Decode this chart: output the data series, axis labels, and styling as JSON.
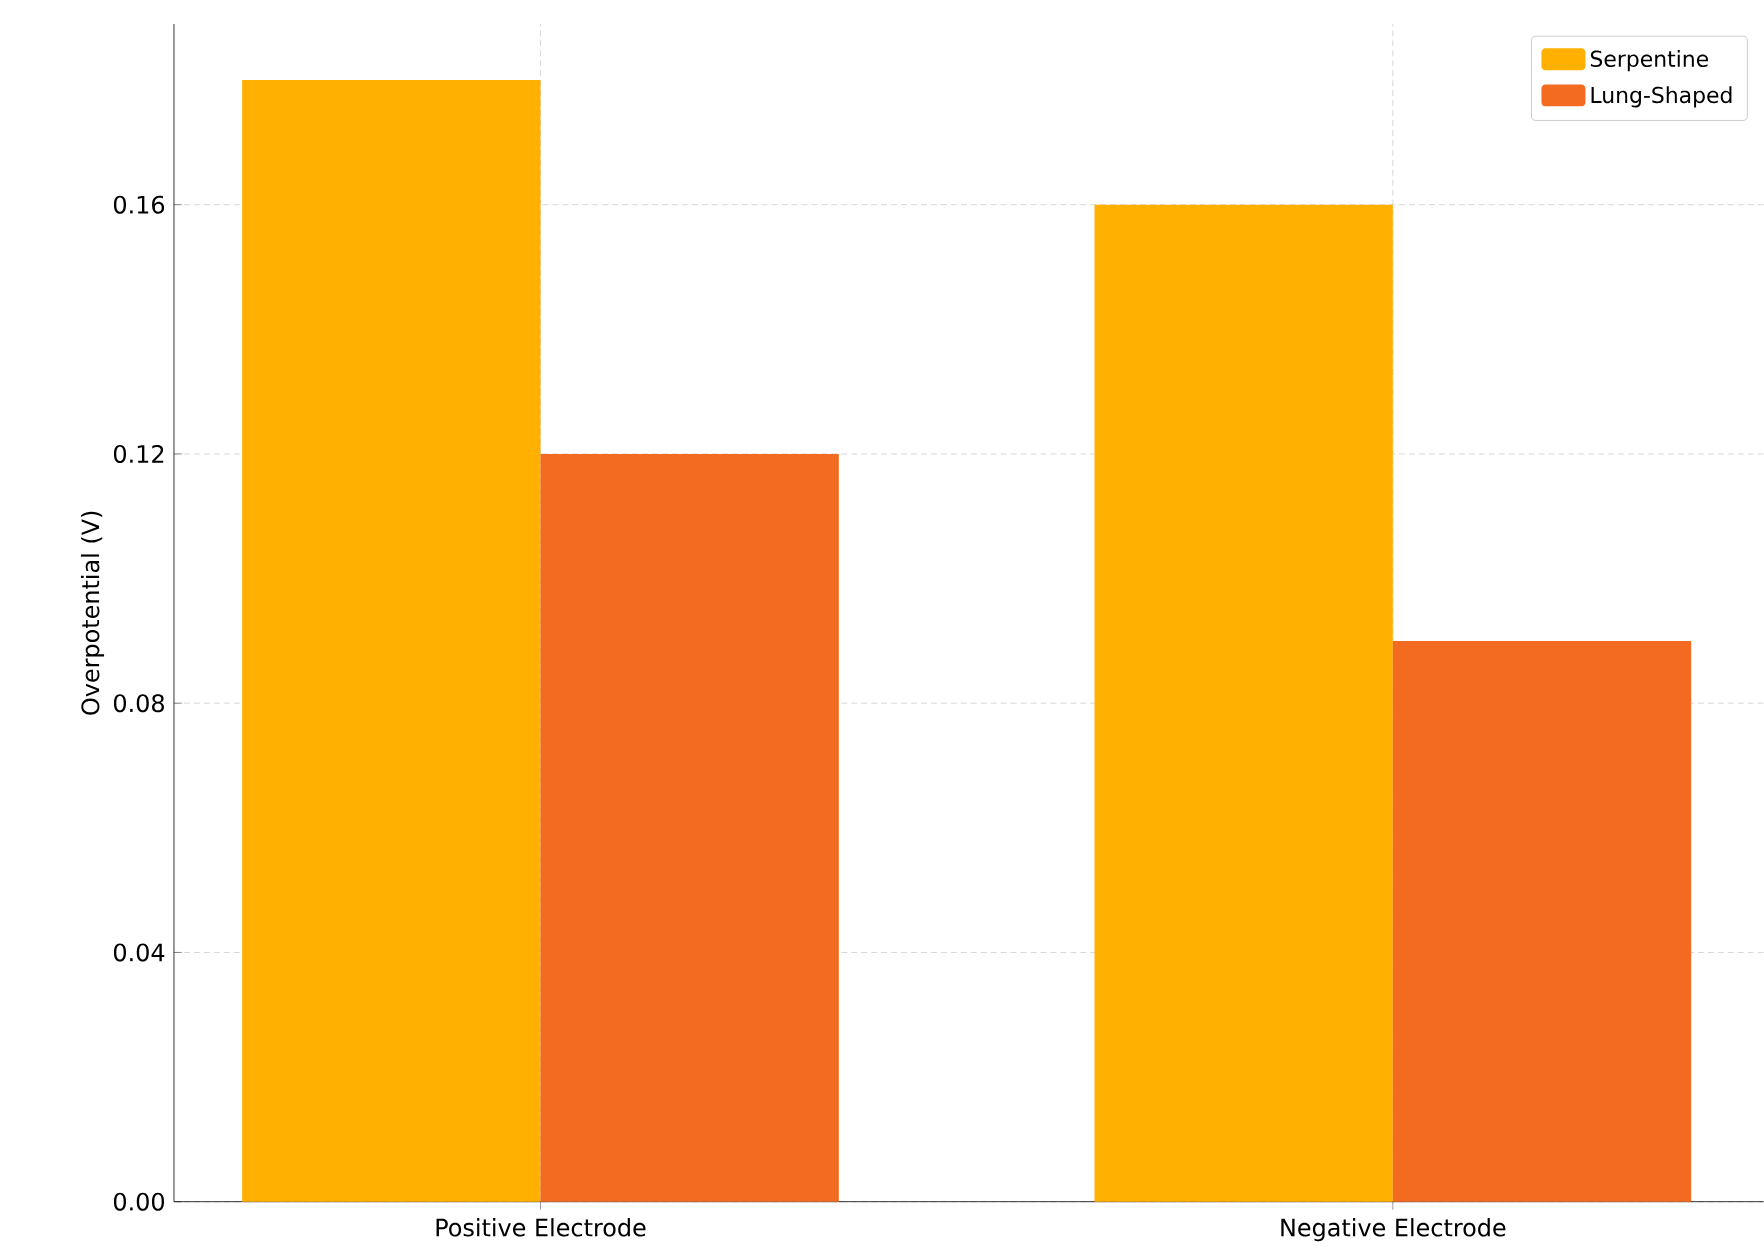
{
  "chart_data": {
    "type": "bar",
    "ylabel": "Overpotential (V)",
    "categories": [
      "Positive Electrode",
      "Negative Electrode"
    ],
    "series": [
      {
        "name": "Serpentine",
        "color": "#ffb000",
        "values": [
          0.18,
          0.16
        ]
      },
      {
        "name": "Lung-Shaped",
        "color": "#f26b21",
        "values": [
          0.12,
          0.09
        ]
      }
    ],
    "ylim": [
      0,
      0.189
    ],
    "yticks": [
      {
        "value": 0,
        "label": "0.00"
      },
      {
        "value": 0.04,
        "label": "0.04"
      },
      {
        "value": 0.08,
        "label": "0.08"
      },
      {
        "value": 0.12,
        "label": "0.12"
      },
      {
        "value": 0.16,
        "label": "0.16"
      }
    ],
    "grid": true,
    "legend": "top right"
  }
}
